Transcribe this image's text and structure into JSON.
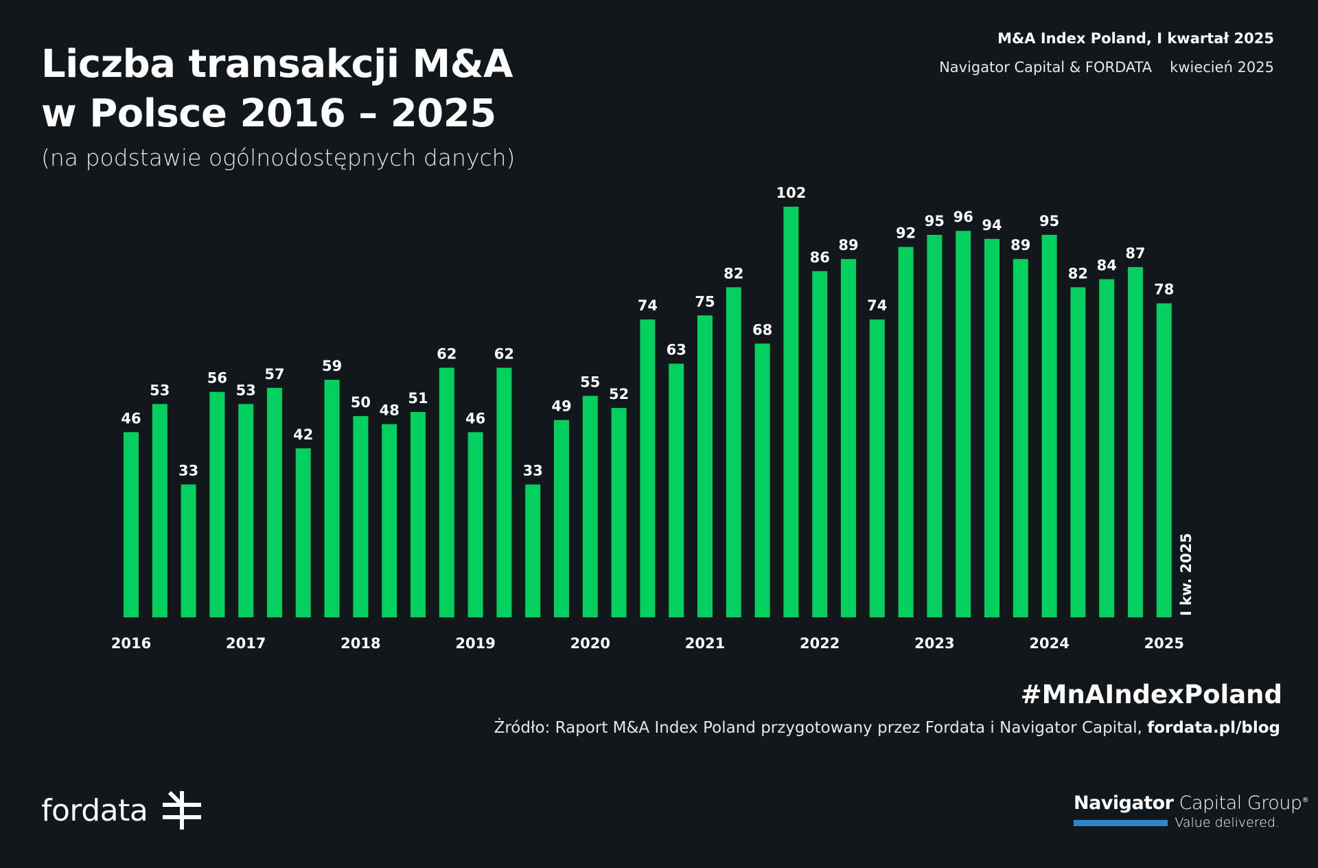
{
  "header": {
    "title_line1": "Liczba transakcji M&A",
    "title_line2": "w Polsce 2016 – 2025",
    "subtitle": "(na podstawie ogólnodostępnych danych)",
    "report_title": "M&A Index Poland, I kwartał 2025",
    "report_authors": "Navigator Capital & FORDATA",
    "report_date": "kwiecień 2025"
  },
  "footer": {
    "hashtag": "#MnAIndexPoland",
    "source_text": "Żródło: Raport M&A Index Poland przygotowany przez Fordata i Navigator Capital,",
    "source_link": "fordata.pl/blog",
    "fordata_logo_text": "fordata",
    "navigator_bold": "Navigator",
    "navigator_light": "Capital Group",
    "navigator_mark": "®",
    "navigator_tagline": "Value delivered."
  },
  "colors": {
    "background": "#12171b",
    "bar": "#02cf5d",
    "text": "#ffffff",
    "navigator_blue": "#2f86c8"
  },
  "chart_data": {
    "type": "bar",
    "title": "Liczba transakcji M&A w Polsce 2016 – 2025",
    "x": [
      "2016 Q1",
      "2016 Q2",
      "2016 Q3",
      "2016 Q4",
      "2017 Q1",
      "2017 Q2",
      "2017 Q3",
      "2017 Q4",
      "2018 Q1",
      "2018 Q2",
      "2018 Q3",
      "2018 Q4",
      "2019 Q1",
      "2019 Q2",
      "2019 Q3",
      "2019 Q4",
      "2020 Q1",
      "2020 Q2",
      "2020 Q3",
      "2020 Q4",
      "2021 Q1",
      "2021 Q2",
      "2021 Q3",
      "2021 Q4",
      "2022 Q1",
      "2022 Q2",
      "2022 Q3",
      "2022 Q4",
      "2023 Q1",
      "2023 Q2",
      "2023 Q3",
      "2023 Q4",
      "2024 Q1",
      "2024 Q2",
      "2024 Q3",
      "2024 Q4",
      "2025 Q1"
    ],
    "values": [
      46,
      53,
      33,
      56,
      53,
      57,
      42,
      59,
      50,
      48,
      51,
      62,
      46,
      62,
      33,
      49,
      55,
      52,
      74,
      63,
      75,
      82,
      68,
      102,
      86,
      89,
      74,
      92,
      95,
      96,
      94,
      89,
      95,
      82,
      84,
      87,
      78
    ],
    "year_labels": [
      {
        "label": "2016",
        "at_bar": 0
      },
      {
        "label": "2017",
        "at_bar": 4
      },
      {
        "label": "2018",
        "at_bar": 8
      },
      {
        "label": "2019",
        "at_bar": 12
      },
      {
        "label": "2020",
        "at_bar": 16
      },
      {
        "label": "2021",
        "at_bar": 20
      },
      {
        "label": "2022",
        "at_bar": 24
      },
      {
        "label": "2023",
        "at_bar": 28
      },
      {
        "label": "2024",
        "at_bar": 32
      },
      {
        "label": "2025",
        "at_bar": 36
      }
    ],
    "annotation": "I kw. 2025",
    "ylim": [
      0,
      102
    ],
    "xlabel": "",
    "ylabel": "",
    "grid": false,
    "legend": "none"
  }
}
